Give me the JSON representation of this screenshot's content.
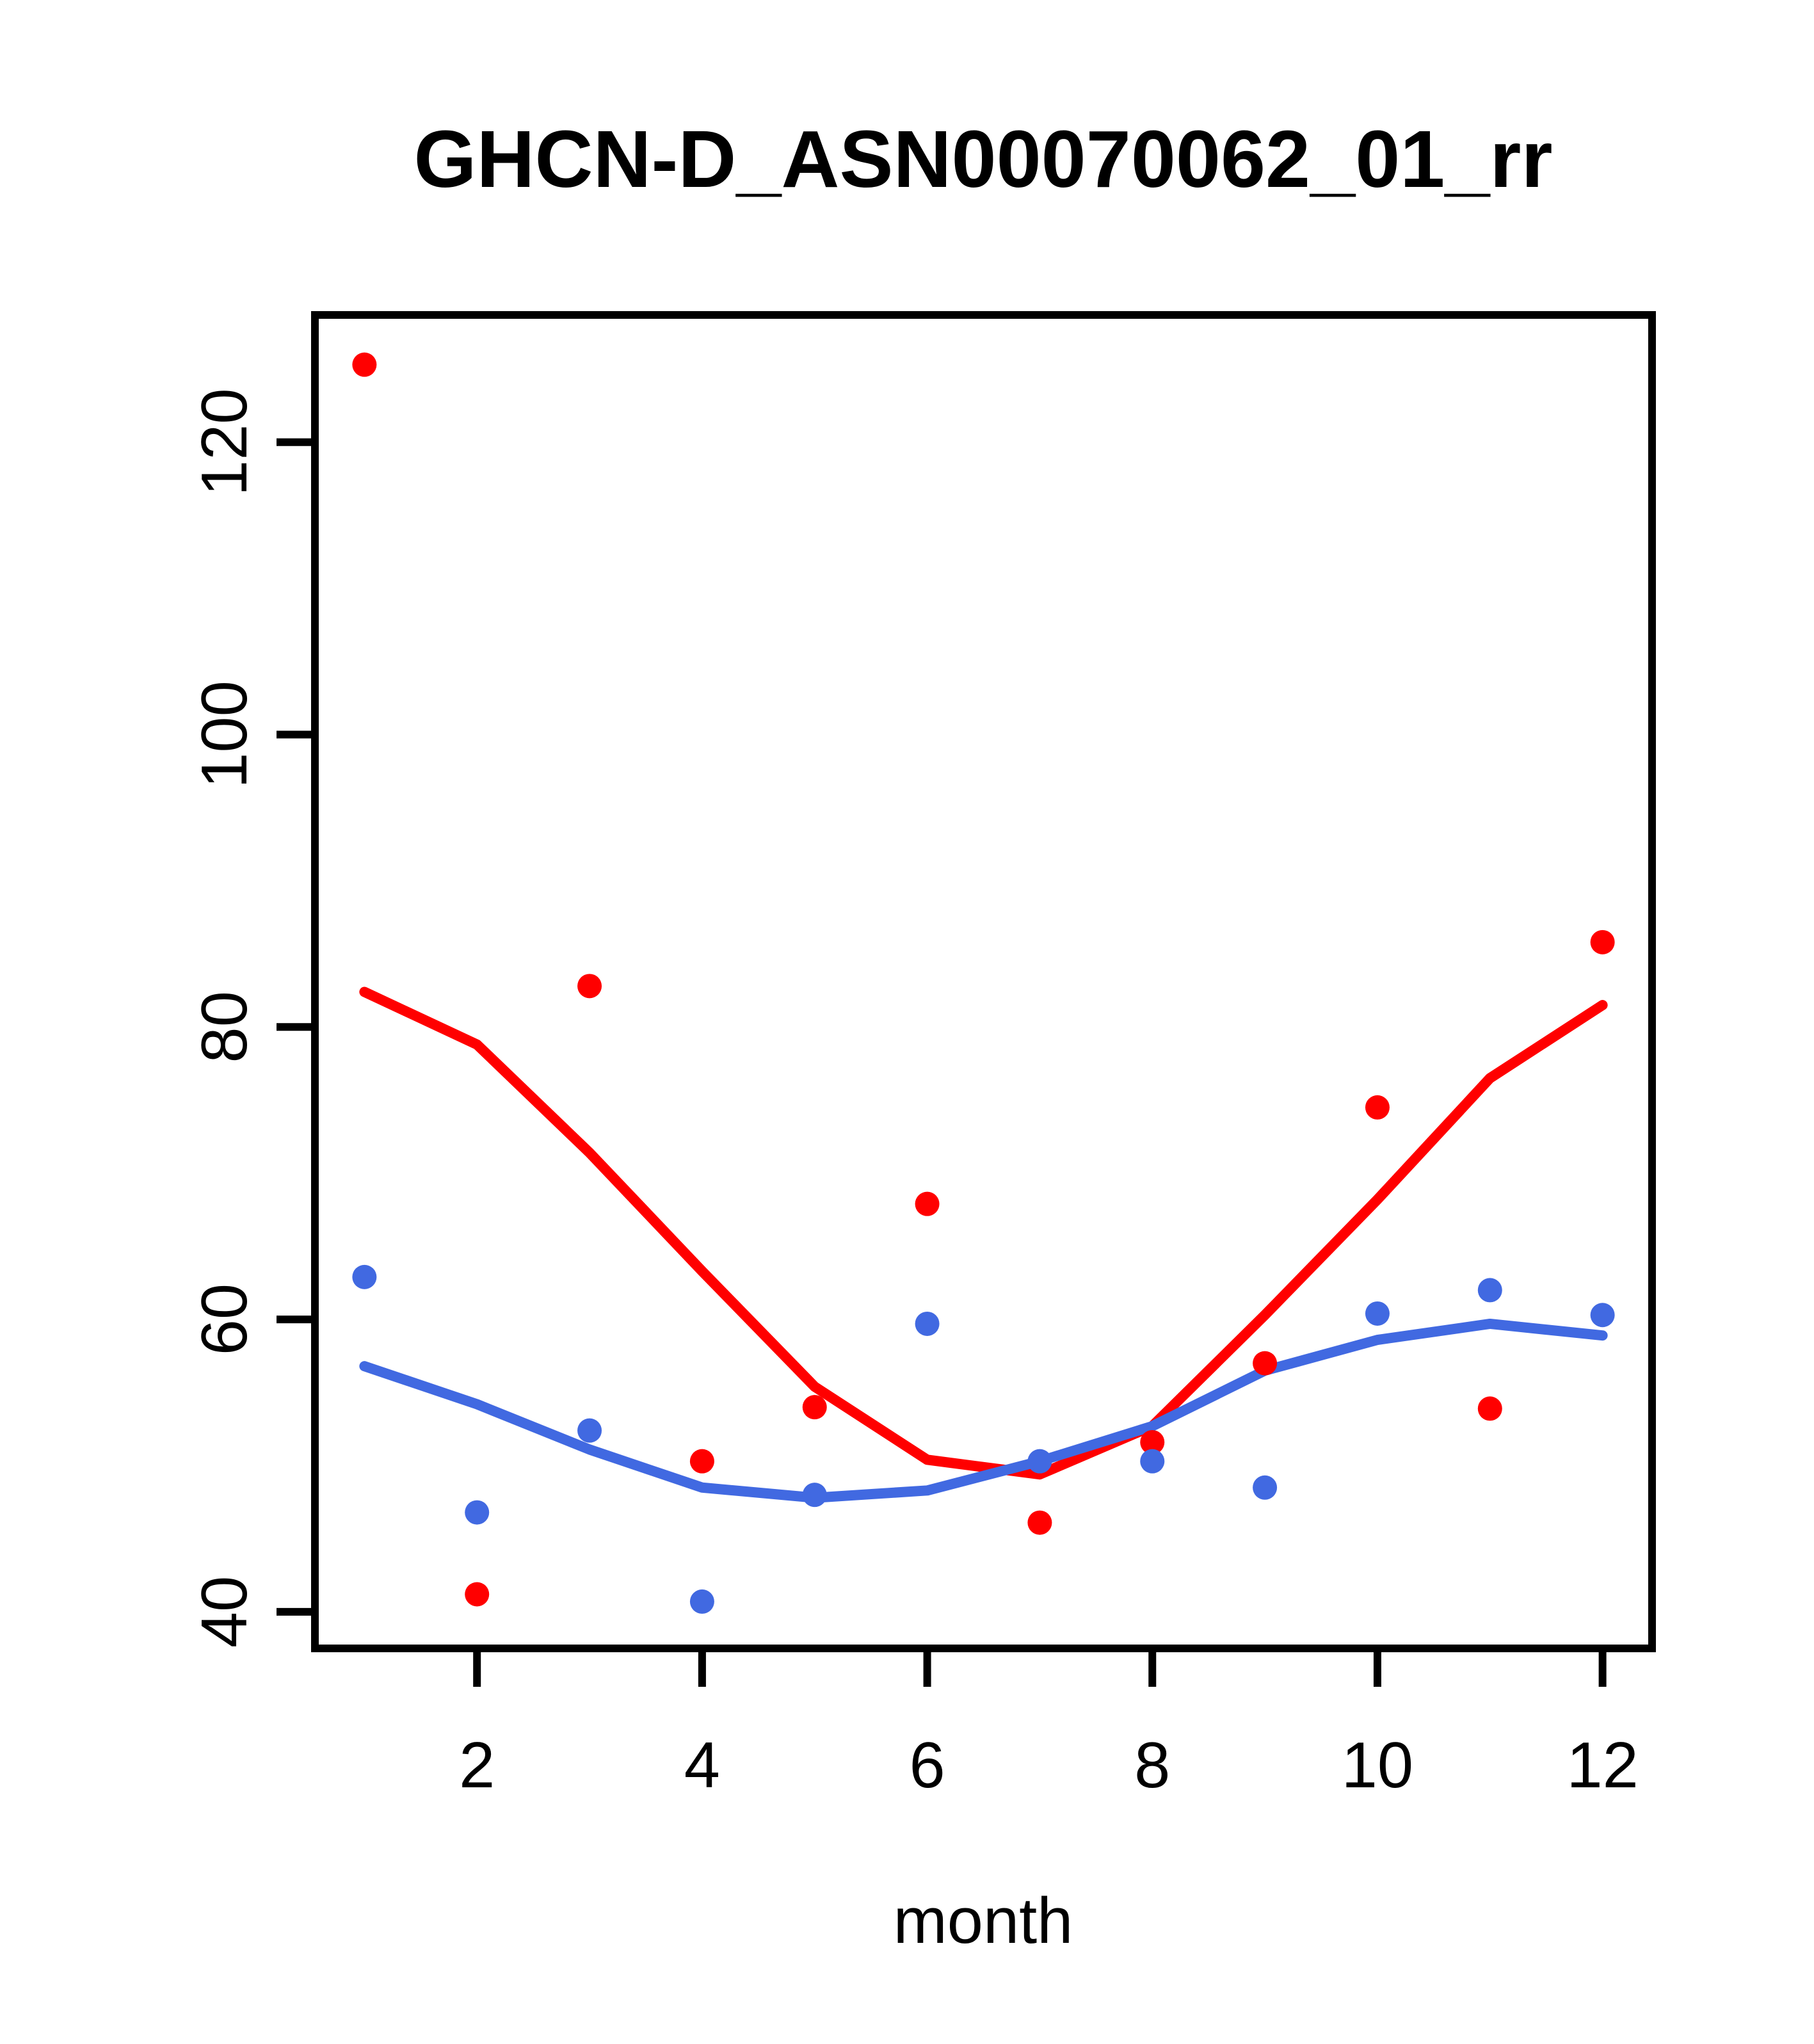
{
  "chart_data": {
    "type": "scatter",
    "title": "GHCN-D_ASN00070062_01_rr",
    "xlabel": "month",
    "ylabel": "",
    "x": [
      1,
      2,
      3,
      4,
      5,
      6,
      7,
      8,
      9,
      10,
      11,
      12
    ],
    "xlim": [
      0.56,
      12.44
    ],
    "ylim": [
      37.5,
      128.7
    ],
    "x_ticks": [
      2,
      4,
      6,
      8,
      10,
      12
    ],
    "y_ticks": [
      40,
      60,
      80,
      100,
      120
    ],
    "grid": false,
    "legend": "none",
    "colors": {
      "red": "#FF0000",
      "blue": "#4169E1",
      "axis": "#000000"
    },
    "series": [
      {
        "name": "red-points",
        "kind": "scatter",
        "color": "#FF0000",
        "values": [
          125.3,
          41.2,
          82.8,
          50.3,
          54.0,
          67.9,
          46.1,
          51.6,
          57.0,
          74.5,
          53.9,
          85.8
        ]
      },
      {
        "name": "blue-points",
        "kind": "scatter",
        "color": "#4169E1",
        "values": [
          62.9,
          46.8,
          52.4,
          40.7,
          48.0,
          59.7,
          50.3,
          50.3,
          48.5,
          60.4,
          62.0,
          60.3
        ]
      },
      {
        "name": "red-loess-line",
        "kind": "line",
        "color": "#FF0000",
        "values": [
          82.4,
          78.8,
          71.4,
          63.3,
          55.4,
          50.4,
          49.4,
          52.7,
          60.3,
          68.2,
          76.5,
          81.5
        ]
      },
      {
        "name": "blue-loess-line",
        "kind": "line",
        "color": "#4169E1",
        "values": [
          56.8,
          54.2,
          51.1,
          48.5,
          47.8,
          48.3,
          50.3,
          52.7,
          56.5,
          58.6,
          59.7,
          58.9
        ]
      }
    ]
  }
}
